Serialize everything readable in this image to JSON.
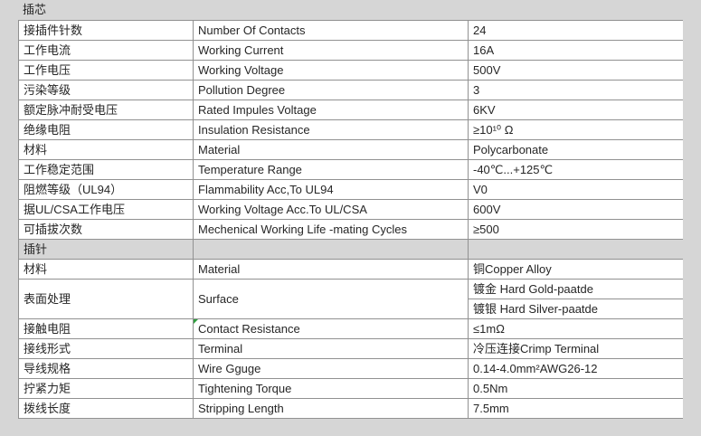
{
  "colors": {
    "background": "#d6d6d6",
    "cell_background": "#ffffff",
    "cell_border": "#919191",
    "text": "#262626",
    "comment_marker_green": "#2f9e3e"
  },
  "table": {
    "sections": [
      {
        "title": "插芯",
        "rows": [
          {
            "cn": "接插件针数",
            "en": "Number Of Contacts",
            "value": "24"
          },
          {
            "cn": "工作电流",
            "en": "Working Current",
            "value": "16A"
          },
          {
            "cn": "工作电压",
            "en": "Working Voltage",
            "value": "500V"
          },
          {
            "cn": "污染等级",
            "en": "Pollution Degree",
            "value": "3"
          },
          {
            "cn": "额定脉冲耐受电压",
            "en": "Rated Impules Voltage",
            "value": "6KV"
          },
          {
            "cn": "绝缘电阻",
            "en": "Insulation Resistance",
            "value": "≥10¹⁰ Ω"
          },
          {
            "cn": "材料",
            "en": "Material",
            "value": "Polycarbonate"
          },
          {
            "cn": "工作稳定范围",
            "en": "Temperature Range",
            "value": "-40℃...+125℃"
          },
          {
            "cn": "阻燃等级（UL94）",
            "en": "Flammability Acc,To UL94",
            "value": "V0"
          },
          {
            "cn": "据UL/CSA工作电压",
            "en": "Working Voltage Acc.To UL/CSA",
            "value": "600V"
          },
          {
            "cn": "可插拔次数",
            "en": "Mechenical Working Life -mating Cycles",
            "value": "≥500"
          }
        ]
      },
      {
        "title": "插针",
        "rows": [
          {
            "cn": "材料",
            "en": "Material",
            "value": "铜Copper Alloy"
          },
          {
            "cn": "表面处理",
            "en": "Surface",
            "values": [
              "镀金 Hard Gold-paatde",
              "镀银 Hard Silver-paatde"
            ]
          },
          {
            "cn": "接触电阻",
            "en": "Contact Resistance",
            "value": "≤1mΩ",
            "has_comment_marker": true
          },
          {
            "cn": "接线形式",
            "en": "Terminal",
            "value": "冷压连接Crimp Terminal"
          },
          {
            "cn": "导线规格",
            "en": "Wire Gguge",
            "value": "0.14-4.0mm²AWG26-12"
          },
          {
            "cn": "拧紧力矩",
            "en": "Tightening Torque",
            "value": "0.5Nm"
          },
          {
            "cn": "拨线长度",
            "en": "Stripping Length",
            "value": "7.5mm"
          }
        ]
      }
    ]
  }
}
